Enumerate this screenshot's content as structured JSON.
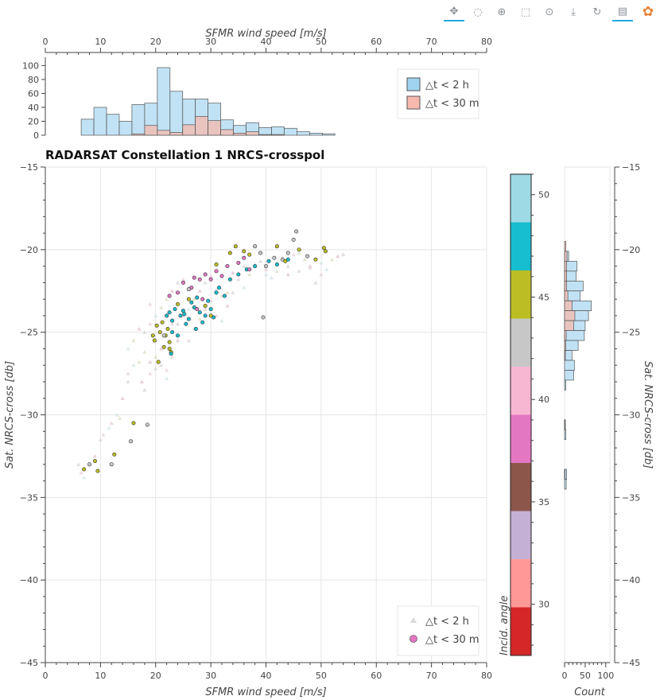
{
  "toolbar": {
    "tools": [
      {
        "name": "pan-tool",
        "icon": "pan-icon",
        "glyph": "✥",
        "active": true
      },
      {
        "name": "lasso-select-tool",
        "icon": "lasso-icon",
        "glyph": "◌",
        "active": false
      },
      {
        "name": "zoom-in-tool",
        "icon": "zoom-icon",
        "glyph": "⊕",
        "active": false
      },
      {
        "name": "box-select-tool",
        "icon": "box-select-icon",
        "glyph": "⬚",
        "active": false
      },
      {
        "name": "wheel-zoom-tool",
        "icon": "wheel-zoom-icon",
        "glyph": "⊙",
        "active": false
      },
      {
        "name": "save-tool",
        "icon": "save-icon",
        "glyph": "⤓",
        "active": false
      },
      {
        "name": "reset-tool",
        "icon": "reset-icon",
        "glyph": "↻",
        "active": false
      },
      {
        "name": "hover-tool",
        "icon": "hover-icon",
        "glyph": "▤",
        "active": true
      },
      {
        "name": "bokeh-logo",
        "icon": "bokeh-logo-icon",
        "glyph": "✿",
        "active": false
      }
    ]
  },
  "chart_data": {
    "type": "scatter",
    "title": "RADARSAT Constellation 1 NRCS-crosspol",
    "xlabel": "SFMR wind speed [m/s]",
    "ylabel": "Sat. NRCS-cross [db]",
    "xlim": [
      0,
      80
    ],
    "ylim": [
      -45,
      -15
    ],
    "x_ticks": [
      0,
      10,
      20,
      30,
      40,
      50,
      60,
      70,
      80
    ],
    "y_ticks": [
      -45,
      -40,
      -35,
      -30,
      -25,
      -20,
      -15
    ],
    "grid": true,
    "legend": {
      "placement": "bottom-right",
      "entries": [
        "△t < 2 h",
        "△t < 30 m"
      ]
    },
    "colorbar": {
      "label": "Incid. angle",
      "range": [
        27.5,
        51
      ],
      "ticks": [
        30,
        35,
        40,
        45,
        50
      ],
      "colors": [
        "#d62728",
        "#ff9896",
        "#c5b0d5",
        "#8c564b",
        "#e377c2",
        "#f7b6d2",
        "#c7c7c7",
        "#bcbd22",
        "#17becf",
        "#9edae5"
      ]
    },
    "top_histogram": {
      "xlabel": "SFMR wind speed [m/s]",
      "y_ticks": [
        0,
        20,
        40,
        60,
        80,
        100
      ],
      "bin_edges_start": 6.5,
      "bin_width": 2.3,
      "series": [
        {
          "name": "△t < 2 h",
          "color": "#9fd3ee",
          "counts": [
            23,
            40,
            30,
            20,
            44,
            46,
            97,
            63,
            52,
            52,
            46,
            22,
            14,
            18,
            11,
            12,
            10,
            5,
            3,
            2
          ]
        },
        {
          "name": "△t < 30 m",
          "color": "#f6b9ae",
          "counts": [
            0,
            0,
            0,
            0,
            2,
            14,
            7,
            4,
            15,
            27,
            21,
            8,
            3,
            5,
            1,
            1,
            0,
            0,
            0,
            0
          ]
        }
      ]
    },
    "right_histogram": {
      "xlabel": "Count",
      "x_ticks": [
        0,
        50,
        100
      ],
      "series": [
        {
          "name": "△t < 2 h",
          "color": "#9fd3ee",
          "bins": [
            {
              "y": -20.4,
              "c": 10
            },
            {
              "y": -21.0,
              "c": 30
            },
            {
              "y": -21.6,
              "c": 28
            },
            {
              "y": -22.2,
              "c": 45
            },
            {
              "y": -22.8,
              "c": 38
            },
            {
              "y": -23.4,
              "c": 65
            },
            {
              "y": -24.0,
              "c": 58
            },
            {
              "y": -24.6,
              "c": 50
            },
            {
              "y": -25.2,
              "c": 48
            },
            {
              "y": -25.8,
              "c": 33
            },
            {
              "y": -26.4,
              "c": 18
            },
            {
              "y": -27.0,
              "c": 24
            },
            {
              "y": -27.6,
              "c": 22
            },
            {
              "y": -28.2,
              "c": 3
            },
            {
              "y": -30.6,
              "c": 2
            },
            {
              "y": -31.2,
              "c": 3
            },
            {
              "y": -33.6,
              "c": 5
            },
            {
              "y": -34.2,
              "c": 4
            }
          ]
        },
        {
          "name": "△t < 30 m",
          "color": "#f6b9ae",
          "bins": [
            {
              "y": -19.8,
              "c": 3
            },
            {
              "y": -20.4,
              "c": 6
            },
            {
              "y": -21.0,
              "c": 5
            },
            {
              "y": -21.6,
              "c": 5
            },
            {
              "y": -22.2,
              "c": 5
            },
            {
              "y": -22.8,
              "c": 8
            },
            {
              "y": -23.4,
              "c": 18
            },
            {
              "y": -24.0,
              "c": 25
            },
            {
              "y": -24.6,
              "c": 22
            },
            {
              "y": -25.2,
              "c": 4
            },
            {
              "y": -25.8,
              "c": 3
            },
            {
              "y": -26.4,
              "c": 2
            },
            {
              "y": -30.6,
              "c": 1
            },
            {
              "y": -33.6,
              "c": 1
            }
          ]
        }
      ]
    },
    "series": [
      {
        "name": "△t < 2 h",
        "marker": "triangle",
        "points": [
          [
            6,
            -33
          ],
          [
            6.5,
            -33.5
          ],
          [
            7,
            -33.8
          ],
          [
            8,
            -33
          ],
          [
            9,
            -32.5
          ],
          [
            10,
            -31.5
          ],
          [
            10.5,
            -31.2
          ],
          [
            11.5,
            -30.8
          ],
          [
            13.5,
            -30.2
          ],
          [
            14,
            -29
          ],
          [
            15,
            -28
          ],
          [
            15,
            -27.5
          ],
          [
            16,
            -27
          ],
          [
            17,
            -26.8
          ],
          [
            17.5,
            -28
          ],
          [
            18,
            -28.5
          ],
          [
            19,
            -27.5
          ],
          [
            15,
            -26
          ],
          [
            16,
            -25.5
          ],
          [
            17,
            -24.8
          ],
          [
            18,
            -25
          ],
          [
            19,
            -24.5
          ],
          [
            20,
            -25.5
          ],
          [
            20,
            -26.5
          ],
          [
            21,
            -26
          ],
          [
            21,
            -27
          ],
          [
            22,
            -27.3
          ],
          [
            22,
            -27.8
          ],
          [
            23,
            -26.5
          ],
          [
            24,
            -25.5
          ],
          [
            24,
            -24.5
          ],
          [
            25,
            -24
          ],
          [
            26,
            -23.6
          ],
          [
            22,
            -23
          ],
          [
            23,
            -22.5
          ],
          [
            24,
            -22
          ],
          [
            25,
            -21.8
          ],
          [
            26,
            -22.3
          ],
          [
            27,
            -23
          ],
          [
            28,
            -22.5
          ],
          [
            29,
            -22
          ],
          [
            30,
            -21.6
          ],
          [
            31,
            -22.4
          ],
          [
            32,
            -22.8
          ],
          [
            33,
            -23.4
          ],
          [
            34,
            -22.6
          ],
          [
            35,
            -21.8
          ],
          [
            36,
            -22.3
          ],
          [
            37,
            -21.5
          ],
          [
            38,
            -21
          ],
          [
            39,
            -20.7
          ],
          [
            40,
            -21.2
          ],
          [
            41,
            -21.7
          ],
          [
            42,
            -21.3
          ],
          [
            43,
            -20.5
          ],
          [
            44,
            -21
          ],
          [
            45,
            -20.3
          ],
          [
            46,
            -20.2
          ],
          [
            47,
            -20.6
          ],
          [
            48,
            -21
          ],
          [
            49,
            -22
          ],
          [
            50,
            -21.5
          ],
          [
            51,
            -21.2
          ],
          [
            52,
            -20.6
          ],
          [
            53,
            -20.4
          ],
          [
            54,
            -20.3
          ],
          [
            19,
            -23.3
          ],
          [
            20,
            -24
          ],
          [
            21,
            -23.5
          ],
          [
            22,
            -24
          ],
          [
            23,
            -24.5
          ],
          [
            26,
            -25.5
          ],
          [
            27,
            -24.8
          ],
          [
            28,
            -24.2
          ],
          [
            29,
            -23.6
          ],
          [
            30,
            -23.1
          ],
          [
            31,
            -24
          ],
          [
            32,
            -24.3
          ],
          [
            33,
            -22.6
          ],
          [
            34,
            -21.4
          ],
          [
            36,
            -21
          ],
          [
            38,
            -20.9
          ],
          [
            40,
            -21.5
          ],
          [
            42,
            -20.8
          ],
          [
            44,
            -21.5
          ],
          [
            46,
            -21.3
          ],
          [
            48,
            -21.1
          ],
          [
            50,
            -20.8
          ],
          [
            18,
            -26.2
          ],
          [
            19,
            -26.8
          ],
          [
            20,
            -27.2
          ],
          [
            12,
            -30.5
          ],
          [
            13,
            -30
          ]
        ]
      },
      {
        "name": "△t < 30 m",
        "marker": "circle",
        "points": [
          [
            7,
            -33.3,
            45
          ],
          [
            8,
            -33,
            42
          ],
          [
            9,
            -32.8,
            45.5
          ],
          [
            9.5,
            -33.4,
            45
          ],
          [
            12,
            -33,
            42
          ],
          [
            12.5,
            -32.4,
            45
          ],
          [
            15.5,
            -31.6,
            42
          ],
          [
            16,
            -30.5,
            45
          ],
          [
            18.5,
            -30.6,
            42
          ],
          [
            19.5,
            -25.2,
            45.5
          ],
          [
            19.8,
            -25.5,
            45
          ],
          [
            20.2,
            -24.6,
            45
          ],
          [
            20.8,
            -25,
            46
          ],
          [
            21.2,
            -24.4,
            45
          ],
          [
            21.8,
            -25.2,
            45.5
          ],
          [
            22.2,
            -24.8,
            45
          ],
          [
            22.5,
            -25.6,
            44
          ],
          [
            22.8,
            -26.2,
            44.5
          ],
          [
            21.5,
            -25.9,
            44
          ],
          [
            20.5,
            -26.8,
            45
          ],
          [
            22,
            -24,
            47
          ],
          [
            22.5,
            -23.8,
            48
          ],
          [
            23,
            -24.3,
            48
          ],
          [
            23.5,
            -23.6,
            48
          ],
          [
            24,
            -23.3,
            46
          ],
          [
            24.5,
            -24,
            47
          ],
          [
            25,
            -23.7,
            48
          ],
          [
            25.5,
            -24.5,
            48
          ],
          [
            26,
            -24.2,
            47
          ],
          [
            26.5,
            -23.2,
            48
          ],
          [
            27,
            -23.5,
            47
          ],
          [
            27.5,
            -22.9,
            48
          ],
          [
            28,
            -23.8,
            48
          ],
          [
            28.5,
            -24.4,
            47
          ],
          [
            29,
            -24,
            48
          ],
          [
            29.5,
            -23.1,
            47
          ],
          [
            30,
            -23.6,
            48
          ],
          [
            30.5,
            -24.1,
            47
          ],
          [
            31,
            -22.6,
            48
          ],
          [
            31.5,
            -22.3,
            47
          ],
          [
            32.5,
            -22.8,
            48
          ],
          [
            33.5,
            -21.8,
            48
          ],
          [
            35,
            -21.5,
            48
          ],
          [
            36.5,
            -21.2,
            47
          ],
          [
            38,
            -21,
            48
          ],
          [
            40.5,
            -20.7,
            48
          ],
          [
            42,
            -20.9,
            47
          ],
          [
            44,
            -20.6,
            48
          ],
          [
            22.5,
            -22.8,
            38
          ],
          [
            24,
            -22.6,
            37
          ],
          [
            25,
            -22,
            38
          ],
          [
            26.5,
            -22.3,
            37
          ],
          [
            27,
            -21.7,
            38
          ],
          [
            28,
            -21.8,
            37
          ],
          [
            29,
            -21.5,
            38
          ],
          [
            30,
            -21.8,
            37
          ],
          [
            31,
            -21.3,
            38
          ],
          [
            32,
            -21.6,
            37
          ],
          [
            33,
            -21,
            38
          ],
          [
            35,
            -20.8,
            37
          ],
          [
            36,
            -20.5,
            38
          ],
          [
            37,
            -21.2,
            38
          ],
          [
            27.5,
            -23.6,
            38
          ],
          [
            28.5,
            -23,
            39
          ],
          [
            39,
            -20.2,
            42
          ],
          [
            40,
            -21,
            42
          ],
          [
            41.5,
            -20.5,
            42
          ],
          [
            43,
            -20.6,
            42
          ],
          [
            44,
            -20.2,
            42
          ],
          [
            45,
            -19.4,
            42
          ],
          [
            45.5,
            -18.9,
            42
          ],
          [
            47.5,
            -20.4,
            42
          ],
          [
            39.5,
            -24.1,
            42
          ],
          [
            38,
            -19.8,
            42
          ],
          [
            26,
            -22.4,
            42
          ],
          [
            21.5,
            -25.2,
            42
          ],
          [
            31,
            -20.9,
            45
          ],
          [
            33.5,
            -20.2,
            45
          ],
          [
            34.5,
            -19.8,
            45
          ],
          [
            36,
            -20.1,
            45
          ],
          [
            37,
            -20.3,
            45
          ],
          [
            42,
            -19.8,
            45
          ],
          [
            43.5,
            -20.7,
            45
          ],
          [
            46,
            -20,
            46
          ],
          [
            49,
            -20.6,
            45
          ],
          [
            50.5,
            -19.9,
            45
          ],
          [
            50.8,
            -20.1,
            45
          ],
          [
            29,
            -23.4,
            45
          ],
          [
            30,
            -24,
            45
          ],
          [
            26,
            -23,
            45
          ],
          [
            22.5,
            -26,
            44.5
          ],
          [
            24,
            -25.2,
            47
          ],
          [
            23,
            -25,
            47
          ],
          [
            22.8,
            -26.3,
            47
          ],
          [
            27.3,
            -24.8,
            48
          ],
          [
            25.2,
            -23.9,
            48
          ]
        ]
      }
    ]
  }
}
